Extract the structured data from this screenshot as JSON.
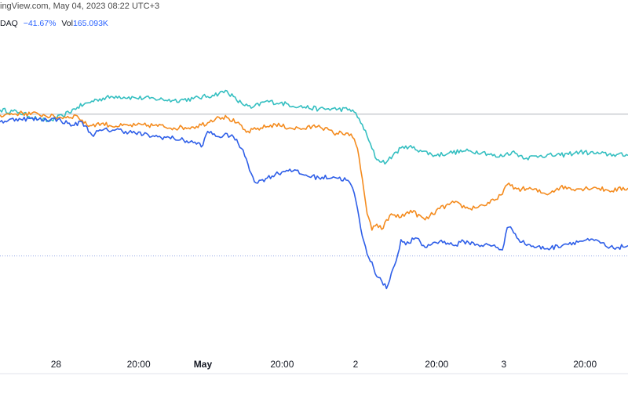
{
  "header": {
    "source_text": "ingView.com, May 04, 2023 08:22 UTC+3"
  },
  "legend": {
    "symbol_fragment": "DAQ",
    "change": "−41.67%",
    "volume_label": "Vol",
    "volume_value": "165.093K"
  },
  "colors": {
    "series_blue": "#2f5fe8",
    "series_orange": "#f48b1e",
    "series_teal": "#35bfc1",
    "ref_line_gray": "#b0b3ba",
    "ref_line_blue": "#9aaee8"
  },
  "chart_data": {
    "type": "line",
    "title": "",
    "xlabel": "",
    "ylabel": "",
    "x_tick_labels": [
      "28",
      "20:00",
      "May",
      "20:00",
      "2",
      "20:00",
      "3",
      "20:00"
    ],
    "x_tick_bold": [
      false,
      false,
      true,
      false,
      false,
      false,
      false,
      false
    ],
    "x_ticks_index": [
      11.6,
      28.7,
      42,
      58.4,
      73.6,
      90.4,
      104.3,
      121.1
    ],
    "xlim": [
      0,
      130
    ],
    "ylim": [
      -25,
      8
    ],
    "reference_lines": [
      {
        "value": 0,
        "style": "solid",
        "color_key": "ref_line_gray"
      },
      {
        "value": -16.5,
        "style": "dotted",
        "color_key": "ref_line_blue"
      }
    ],
    "series": [
      {
        "color_key": "series_teal",
        "keyframes": [
          [
            0,
            0.5
          ],
          [
            4,
            0.2
          ],
          [
            8,
            -0.6
          ],
          [
            10,
            -0.8
          ],
          [
            13,
            -0.2
          ],
          [
            16,
            0.8
          ],
          [
            20,
            1.7
          ],
          [
            24,
            2.1
          ],
          [
            28,
            1.9
          ],
          [
            32,
            1.8
          ],
          [
            36,
            1.6
          ],
          [
            40,
            1.8
          ],
          [
            44,
            2.2
          ],
          [
            47,
            2.7
          ],
          [
            49,
            1.6
          ],
          [
            52,
            0.7
          ],
          [
            55,
            1.5
          ],
          [
            58,
            1.3
          ],
          [
            62,
            0.9
          ],
          [
            66,
            0.6
          ],
          [
            70,
            0.6
          ],
          [
            73,
            0.5
          ],
          [
            75,
            -1.2
          ],
          [
            77,
            -4.0
          ],
          [
            78,
            -5.3
          ],
          [
            80,
            -5.6
          ],
          [
            82,
            -4.4
          ],
          [
            84,
            -3.7
          ],
          [
            87,
            -4.2
          ],
          [
            90,
            -4.8
          ],
          [
            93,
            -4.5
          ],
          [
            96,
            -4.3
          ],
          [
            100,
            -4.4
          ],
          [
            103,
            -5.0
          ],
          [
            106,
            -4.4
          ],
          [
            109,
            -5.1
          ],
          [
            112,
            -4.8
          ],
          [
            116,
            -4.8
          ],
          [
            120,
            -4.4
          ],
          [
            124,
            -4.6
          ],
          [
            127,
            -4.7
          ],
          [
            130,
            -4.8
          ]
        ]
      },
      {
        "color_key": "series_orange",
        "keyframes": [
          [
            0,
            -0.1
          ],
          [
            4,
            0.1
          ],
          [
            8,
            0.0
          ],
          [
            12,
            -0.4
          ],
          [
            16,
            -0.2
          ],
          [
            18,
            -1.3
          ],
          [
            21,
            -1.1
          ],
          [
            24,
            -1.4
          ],
          [
            28,
            -1.3
          ],
          [
            32,
            -1.3
          ],
          [
            36,
            -1.6
          ],
          [
            40,
            -1.5
          ],
          [
            43,
            -1.0
          ],
          [
            45,
            -0.3
          ],
          [
            47,
            -0.4
          ],
          [
            49,
            -1.0
          ],
          [
            51,
            -2.1
          ],
          [
            54,
            -1.6
          ],
          [
            57,
            -1.2
          ],
          [
            60,
            -1.6
          ],
          [
            63,
            -1.7
          ],
          [
            66,
            -1.3
          ],
          [
            69,
            -2.2
          ],
          [
            72,
            -2.2
          ],
          [
            73,
            -2.7
          ],
          [
            74,
            -4.0
          ],
          [
            75,
            -7.5
          ],
          [
            76,
            -11.6
          ],
          [
            77,
            -13.5
          ],
          [
            78,
            -12.8
          ],
          [
            79,
            -13.4
          ],
          [
            81,
            -11.6
          ],
          [
            83,
            -12.0
          ],
          [
            85,
            -11.2
          ],
          [
            88,
            -12.3
          ],
          [
            91,
            -11.0
          ],
          [
            94,
            -10.3
          ],
          [
            97,
            -11.0
          ],
          [
            100,
            -10.6
          ],
          [
            103,
            -9.9
          ],
          [
            105,
            -8.2
          ],
          [
            107,
            -8.7
          ],
          [
            110,
            -8.7
          ],
          [
            113,
            -9.3
          ],
          [
            116,
            -8.5
          ],
          [
            120,
            -8.7
          ],
          [
            123,
            -8.5
          ],
          [
            126,
            -8.9
          ],
          [
            130,
            -8.6
          ]
        ]
      },
      {
        "color_key": "series_blue",
        "keyframes": [
          [
            0,
            -0.9
          ],
          [
            4,
            -0.5
          ],
          [
            8,
            -0.6
          ],
          [
            12,
            -0.6
          ],
          [
            15,
            -1.3
          ],
          [
            17,
            -0.9
          ],
          [
            19,
            -2.4
          ],
          [
            21,
            -1.9
          ],
          [
            24,
            -1.8
          ],
          [
            28,
            -2.2
          ],
          [
            32,
            -2.6
          ],
          [
            36,
            -2.8
          ],
          [
            40,
            -3.3
          ],
          [
            42,
            -3.6
          ],
          [
            43,
            -2.0
          ],
          [
            45,
            -2.6
          ],
          [
            48,
            -2.4
          ],
          [
            50,
            -4.0
          ],
          [
            51,
            -5.2
          ],
          [
            52,
            -6.9
          ],
          [
            53,
            -8.0
          ],
          [
            55,
            -7.5
          ],
          [
            57,
            -7.0
          ],
          [
            60,
            -6.4
          ],
          [
            63,
            -7.1
          ],
          [
            66,
            -7.4
          ],
          [
            69,
            -7.3
          ],
          [
            72,
            -7.7
          ],
          [
            73,
            -8.6
          ],
          [
            74,
            -11.0
          ],
          [
            75,
            -14.2
          ],
          [
            76,
            -16.3
          ],
          [
            77,
            -17.2
          ],
          [
            78,
            -18.9
          ],
          [
            79,
            -19.4
          ],
          [
            80,
            -20.3
          ],
          [
            81,
            -18.5
          ],
          [
            82,
            -17.1
          ],
          [
            83,
            -14.6
          ],
          [
            84,
            -15.2
          ],
          [
            86,
            -14.4
          ],
          [
            88,
            -15.5
          ],
          [
            90,
            -14.9
          ],
          [
            92,
            -14.8
          ],
          [
            94,
            -15.3
          ],
          [
            96,
            -14.8
          ],
          [
            99,
            -15.2
          ],
          [
            102,
            -15.3
          ],
          [
            104,
            -15.8
          ],
          [
            105,
            -13.2
          ],
          [
            106,
            -13.4
          ],
          [
            108,
            -14.9
          ],
          [
            111,
            -15.5
          ],
          [
            114,
            -15.6
          ],
          [
            117,
            -15.1
          ],
          [
            121,
            -14.7
          ],
          [
            124,
            -14.8
          ],
          [
            126,
            -15.6
          ],
          [
            128,
            -15.5
          ],
          [
            130,
            -15.3
          ]
        ]
      }
    ],
    "grid": false,
    "legend_placement": "top-left"
  }
}
